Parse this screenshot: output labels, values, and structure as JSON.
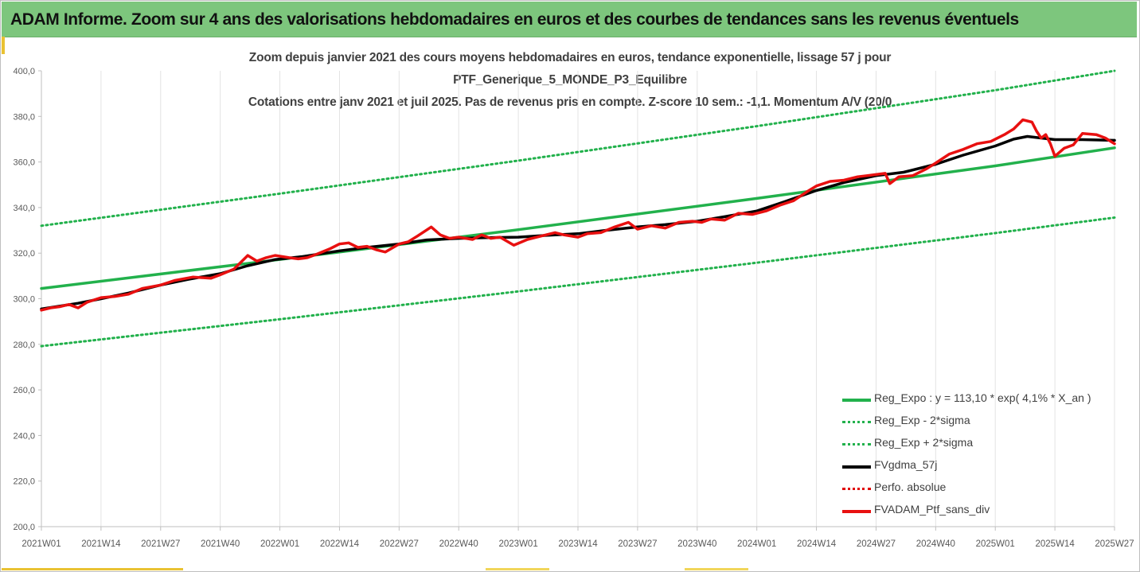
{
  "banner": {
    "title": "ADAM Informe. Zoom sur 4 ans des valorisations hebdomadaires en euros et des courbes de tendances sans les revenus éventuels"
  },
  "colors": {
    "banner_bg": "#7dc67d",
    "trend": "#22b14c",
    "bands": "#22b14c",
    "mma": "#000000",
    "perf": "#e00000",
    "price": "#e81010",
    "accent": "#e9c233"
  },
  "chart_data": {
    "type": "line",
    "title_lines": [
      "Zoom depuis janvier 2021 des cours moyens hebdomadaires  en euros, tendance exponentielle, lissage 57 j pour",
      "PTF_Generique_5_MONDE_P3_Equilibre",
      "Cotations entre janv 2021 et juil 2025. Pas de revenus pris en compte. Z-score 10 sem.: -1,1. Momentum  A/V (20/0"
    ],
    "x_tick_labels": [
      "2021W01",
      "2021W14",
      "2021W27",
      "2021W40",
      "2022W01",
      "2022W14",
      "2022W27",
      "2022W40",
      "2023W01",
      "2023W14",
      "2023W27",
      "2023W40",
      "2024W01",
      "2024W14",
      "2024W27",
      "2024W40",
      "2025W01",
      "2025W14",
      "2025W27"
    ],
    "y_tick_labels": [
      "200,0",
      "220,0",
      "240,0",
      "260,0",
      "280,0",
      "300,0",
      "320,0",
      "340,0",
      "360,0",
      "380,0",
      "400,0"
    ],
    "ylim": [
      200,
      400
    ],
    "grid": "vertical",
    "legend_position": "bottom-right",
    "series": [
      {
        "name": "Reg_Expo : y = 113,10 * exp( 4,1% *  X_an )",
        "style": "solid-thick",
        "color": "#22b14c",
        "points": [
          [
            "2021W01",
            304.5
          ],
          [
            "2022W01",
            317.2
          ],
          [
            "2023W01",
            330.3
          ],
          [
            "2024W01",
            344.0
          ],
          [
            "2025W01",
            358.3
          ],
          [
            "2025W27",
            366.2
          ]
        ]
      },
      {
        "name": "Reg_Exp - 2*sigma",
        "style": "dotted",
        "color": "#22b14c",
        "points": [
          [
            "2021W01",
            279.2
          ],
          [
            "2022W01",
            291.0
          ],
          [
            "2023W01",
            303.2
          ],
          [
            "2024W01",
            315.8
          ],
          [
            "2025W01",
            328.8
          ],
          [
            "2025W27",
            335.6
          ]
        ]
      },
      {
        "name": "Reg_Exp + 2*sigma",
        "style": "dotted",
        "color": "#22b14c",
        "points": [
          [
            "2021W01",
            332.0
          ],
          [
            "2022W01",
            346.1
          ],
          [
            "2023W01",
            360.6
          ],
          [
            "2024W01",
            375.7
          ],
          [
            "2025W01",
            391.5
          ],
          [
            "2025W27",
            400.0
          ]
        ]
      },
      {
        "name": "FVgdma_57j",
        "style": "solid-thick",
        "color": "#000000",
        "points": [
          [
            "2021W01",
            295.5
          ],
          [
            "2021W09",
            298.0
          ],
          [
            "2021W14",
            300.0
          ],
          [
            "2021W20",
            302.5
          ],
          [
            "2021W27",
            306.0
          ],
          [
            "2021W33",
            308.5
          ],
          [
            "2021W40",
            311.0
          ],
          [
            "2021W46",
            314.5
          ],
          [
            "2021W52",
            317.2
          ],
          [
            "2022W06",
            318.5
          ],
          [
            "2022W14",
            321.0
          ],
          [
            "2022W20",
            322.5
          ],
          [
            "2022W27",
            324.0
          ],
          [
            "2022W33",
            325.8
          ],
          [
            "2022W40",
            326.5
          ],
          [
            "2022W46",
            326.8
          ],
          [
            "2023W01",
            327.0
          ],
          [
            "2023W07",
            327.8
          ],
          [
            "2023W14",
            328.5
          ],
          [
            "2023W20",
            330.0
          ],
          [
            "2023W27",
            331.5
          ],
          [
            "2023W33",
            332.5
          ],
          [
            "2023W40",
            334.0
          ],
          [
            "2023W46",
            336.0
          ],
          [
            "2024W01",
            338.5
          ],
          [
            "2024W07",
            342.5
          ],
          [
            "2024W14",
            347.5
          ],
          [
            "2024W20",
            351.0
          ],
          [
            "2024W27",
            354.0
          ],
          [
            "2024W33",
            355.5
          ],
          [
            "2024W40",
            359.0
          ],
          [
            "2024W46",
            363.0
          ],
          [
            "2025W01",
            367.0
          ],
          [
            "2025W05",
            370.0
          ],
          [
            "2025W08",
            371.2
          ],
          [
            "2025W11",
            370.5
          ],
          [
            "2025W14",
            369.8
          ],
          [
            "2025W20",
            369.8
          ],
          [
            "2025W27",
            369.5
          ]
        ]
      },
      {
        "name": "Perfo. absolue",
        "style": "dotted",
        "color": "#e00000",
        "points": []
      },
      {
        "name": "FVADAM_Ptf_sans_div",
        "style": "solid-thick",
        "color": "#e81010",
        "points": [
          [
            "2021W01",
            295.0
          ],
          [
            "2021W03",
            296.0
          ],
          [
            "2021W05",
            296.5
          ],
          [
            "2021W07",
            297.5
          ],
          [
            "2021W09",
            296.0
          ],
          [
            "2021W11",
            298.5
          ],
          [
            "2021W14",
            300.5
          ],
          [
            "2021W17",
            301.0
          ],
          [
            "2021W20",
            302.0
          ],
          [
            "2021W23",
            304.5
          ],
          [
            "2021W27",
            306.0
          ],
          [
            "2021W30",
            308.0
          ],
          [
            "2021W34",
            309.5
          ],
          [
            "2021W38",
            309.0
          ],
          [
            "2021W40",
            310.5
          ],
          [
            "2021W43",
            313.0
          ],
          [
            "2021W46",
            319.0
          ],
          [
            "2021W48",
            316.5
          ],
          [
            "2021W50",
            318.0
          ],
          [
            "2021W52",
            319.0
          ],
          [
            "2022W03",
            318.0
          ],
          [
            "2022W05",
            317.5
          ],
          [
            "2022W07",
            318.0
          ],
          [
            "2022W09",
            319.5
          ],
          [
            "2022W12",
            322.0
          ],
          [
            "2022W14",
            324.0
          ],
          [
            "2022W16",
            324.5
          ],
          [
            "2022W18",
            322.5
          ],
          [
            "2022W20",
            323.0
          ],
          [
            "2022W22",
            321.5
          ],
          [
            "2022W24",
            320.5
          ],
          [
            "2022W27",
            324.0
          ],
          [
            "2022W29",
            325.0
          ],
          [
            "2022W31",
            327.5
          ],
          [
            "2022W34",
            331.5
          ],
          [
            "2022W36",
            328.0
          ],
          [
            "2022W38",
            326.5
          ],
          [
            "2022W40",
            327.0
          ],
          [
            "2022W43",
            326.0
          ],
          [
            "2022W45",
            328.0
          ],
          [
            "2022W47",
            326.5
          ],
          [
            "2022W49",
            327.0
          ],
          [
            "2022W52",
            323.5
          ],
          [
            "2023W03",
            326.0
          ],
          [
            "2023W06",
            327.5
          ],
          [
            "2023W09",
            329.0
          ],
          [
            "2023W11",
            328.0
          ],
          [
            "2023W14",
            327.0
          ],
          [
            "2023W16",
            328.5
          ],
          [
            "2023W19",
            329.0
          ],
          [
            "2023W22",
            331.5
          ],
          [
            "2023W25",
            333.5
          ],
          [
            "2023W27",
            330.5
          ],
          [
            "2023W30",
            332.0
          ],
          [
            "2023W33",
            331.0
          ],
          [
            "2023W36",
            333.5
          ],
          [
            "2023W39",
            334.0
          ],
          [
            "2023W41",
            333.5
          ],
          [
            "2023W43",
            335.0
          ],
          [
            "2023W46",
            334.5
          ],
          [
            "2023W49",
            337.5
          ],
          [
            "2023W52",
            337.0
          ],
          [
            "2024W03",
            338.5
          ],
          [
            "2024W06",
            341.0
          ],
          [
            "2024W09",
            343.0
          ],
          [
            "2024W12",
            347.0
          ],
          [
            "2024W14",
            349.5
          ],
          [
            "2024W17",
            351.5
          ],
          [
            "2024W20",
            352.0
          ],
          [
            "2024W23",
            353.5
          ],
          [
            "2024W25",
            354.0
          ],
          [
            "2024W27",
            354.5
          ],
          [
            "2024W29",
            355.0
          ],
          [
            "2024W30",
            350.5
          ],
          [
            "2024W32",
            353.5
          ],
          [
            "2024W35",
            354.0
          ],
          [
            "2024W38",
            357.0
          ],
          [
            "2024W40",
            359.5
          ],
          [
            "2024W43",
            363.5
          ],
          [
            "2024W46",
            365.5
          ],
          [
            "2024W49",
            368.0
          ],
          [
            "2024W52",
            369.0
          ],
          [
            "2025W03",
            372.0
          ],
          [
            "2025W05",
            374.5
          ],
          [
            "2025W07",
            378.5
          ],
          [
            "2025W09",
            377.5
          ],
          [
            "2025W10",
            373.5
          ],
          [
            "2025W11",
            370.5
          ],
          [
            "2025W12",
            372.0
          ],
          [
            "2025W13",
            368.0
          ],
          [
            "2025W14",
            362.5
          ],
          [
            "2025W16",
            366.0
          ],
          [
            "2025W18",
            367.5
          ],
          [
            "2025W20",
            372.5
          ],
          [
            "2025W23",
            372.0
          ],
          [
            "2025W25",
            370.5
          ],
          [
            "2025W27",
            368.0
          ]
        ]
      }
    ]
  }
}
